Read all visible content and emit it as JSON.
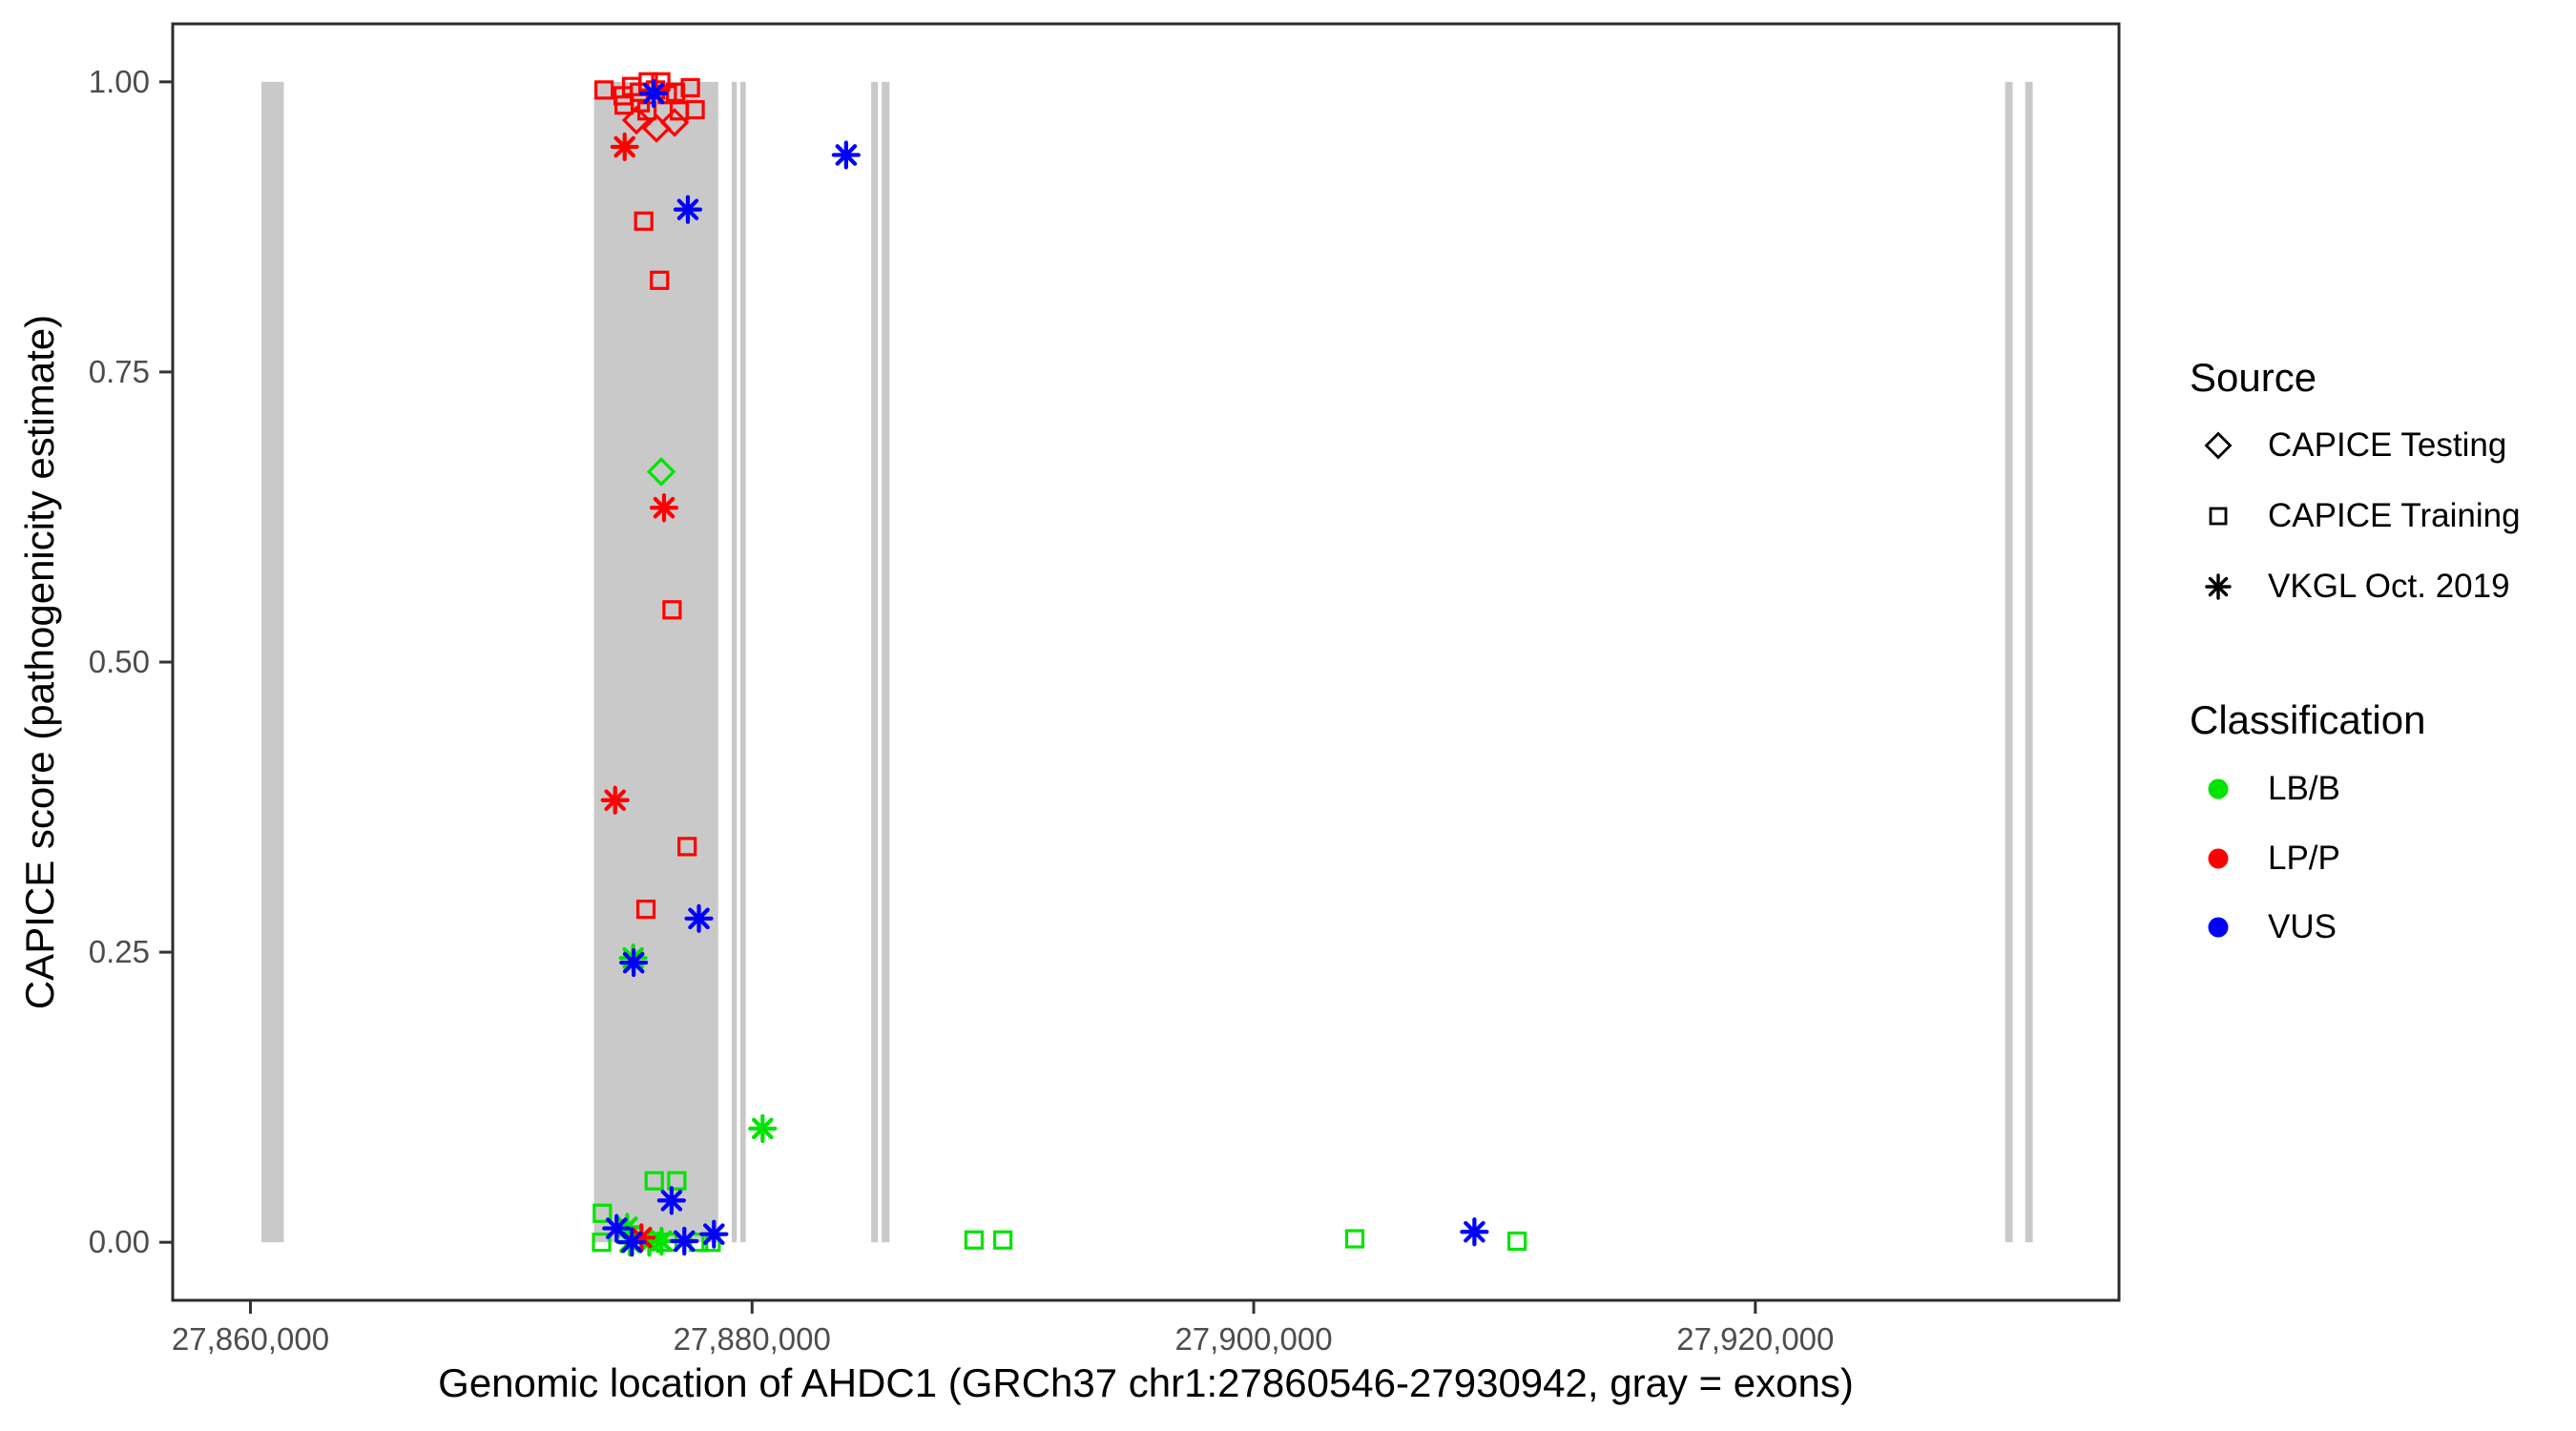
{
  "figure": {
    "background": "#FFFFFF"
  },
  "colors": {
    "exon_gray": "#C9C9C9",
    "axis_text": "#4D4D4D",
    "panel_border": "#2B2B2B",
    "tick_mark": "#333333",
    "LB/B": "#00E400",
    "LP/P": "#FF0000",
    "VUS": "#0000FF"
  },
  "chart_data": {
    "type": "scatter",
    "title": "",
    "xlabel": "Genomic location of AHDC1 (GRCh37 chr1:27860546-27930942, gray = exons)",
    "ylabel": "CAPICE score (pathogenicity estimate)",
    "x_domain": [
      27856900,
      27934500
    ],
    "y_domain": [
      -0.05,
      1.05
    ],
    "grid": "off",
    "legend_position": "right",
    "x_ticks": [
      {
        "value": 27860000,
        "label": "27,860,000"
      },
      {
        "value": 27880000,
        "label": "27,880,000"
      },
      {
        "value": 27900000,
        "label": "27,900,000"
      },
      {
        "value": 27920000,
        "label": "27,920,000"
      }
    ],
    "y_ticks": [
      {
        "value": 0.0,
        "label": "0.00"
      },
      {
        "value": 0.25,
        "label": "0.25"
      },
      {
        "value": 0.5,
        "label": "0.50"
      },
      {
        "value": 0.75,
        "label": "0.75"
      },
      {
        "value": 1.0,
        "label": "1.00"
      }
    ],
    "exons_bp": [
      [
        27860440,
        27861330
      ],
      [
        27873700,
        27878650
      ],
      [
        27879190,
        27879390
      ],
      [
        27879530,
        27879750
      ],
      [
        27884750,
        27885020
      ],
      [
        27885170,
        27885480
      ],
      [
        27929960,
        27930260
      ],
      [
        27930760,
        27931060
      ]
    ],
    "points": [
      {
        "bp": 27876100,
        "score": 0.053,
        "classification": "LB/B",
        "source": "CAPICE Training"
      },
      {
        "bp": 27877000,
        "score": 0.053,
        "classification": "LB/B",
        "source": "CAPICE Training"
      },
      {
        "bp": 27874030,
        "score": 0.025,
        "classification": "LB/B",
        "source": "CAPICE Training"
      },
      {
        "bp": 27874000,
        "score": 0.0,
        "classification": "LB/B",
        "source": "CAPICE Training"
      },
      {
        "bp": 27876650,
        "score": 0.0,
        "classification": "LB/B",
        "source": "CAPICE Training"
      },
      {
        "bp": 27877870,
        "score": 0.0,
        "classification": "LB/B",
        "source": "CAPICE Training"
      },
      {
        "bp": 27878370,
        "score": 0.0,
        "classification": "LB/B",
        "source": "CAPICE Training"
      },
      {
        "bp": 27888850,
        "score": 0.002,
        "classification": "LB/B",
        "source": "CAPICE Training"
      },
      {
        "bp": 27890000,
        "score": 0.002,
        "classification": "LB/B",
        "source": "CAPICE Training"
      },
      {
        "bp": 27904030,
        "score": 0.003,
        "classification": "LB/B",
        "source": "CAPICE Training"
      },
      {
        "bp": 27910500,
        "score": 0.001,
        "classification": "LB/B",
        "source": "CAPICE Training"
      },
      {
        "bp": 27874100,
        "score": 0.993,
        "classification": "LP/P",
        "source": "CAPICE Training"
      },
      {
        "bp": 27874860,
        "score": 0.988,
        "classification": "LP/P",
        "source": "CAPICE Training"
      },
      {
        "bp": 27875200,
        "score": 0.996,
        "classification": "LP/P",
        "source": "CAPICE Training"
      },
      {
        "bp": 27875510,
        "score": 0.991,
        "classification": "LP/P",
        "source": "CAPICE Training"
      },
      {
        "bp": 27875860,
        "score": 1.0,
        "classification": "LP/P",
        "source": "CAPICE Training"
      },
      {
        "bp": 27876150,
        "score": 0.993,
        "classification": "LP/P",
        "source": "CAPICE Training"
      },
      {
        "bp": 27876360,
        "score": 1.0,
        "classification": "LP/P",
        "source": "CAPICE Training"
      },
      {
        "bp": 27876620,
        "score": 0.989,
        "classification": "LP/P",
        "source": "CAPICE Training"
      },
      {
        "bp": 27876950,
        "score": 0.991,
        "classification": "LP/P",
        "source": "CAPICE Training"
      },
      {
        "bp": 27877540,
        "score": 0.995,
        "classification": "LP/P",
        "source": "CAPICE Training"
      },
      {
        "bp": 27877730,
        "score": 0.976,
        "classification": "LP/P",
        "source": "CAPICE Training"
      },
      {
        "bp": 27877100,
        "score": 0.975,
        "classification": "LP/P",
        "source": "CAPICE Training"
      },
      {
        "bp": 27875810,
        "score": 0.975,
        "classification": "LP/P",
        "source": "CAPICE Training"
      },
      {
        "bp": 27875540,
        "score": 0.982,
        "classification": "LP/P",
        "source": "CAPICE Training"
      },
      {
        "bp": 27874900,
        "score": 0.98,
        "classification": "LP/P",
        "source": "CAPICE Training"
      },
      {
        "bp": 27875680,
        "score": 0.88,
        "classification": "LP/P",
        "source": "CAPICE Training"
      },
      {
        "bp": 27876310,
        "score": 0.829,
        "classification": "LP/P",
        "source": "CAPICE Training"
      },
      {
        "bp": 27876810,
        "score": 0.545,
        "classification": "LP/P",
        "source": "CAPICE Training"
      },
      {
        "bp": 27877410,
        "score": 0.341,
        "classification": "LP/P",
        "source": "CAPICE Training"
      },
      {
        "bp": 27875770,
        "score": 0.287,
        "classification": "LP/P",
        "source": "CAPICE Training"
      },
      {
        "bp": 27875390,
        "score": 0.967,
        "classification": "LP/P",
        "source": "CAPICE Testing"
      },
      {
        "bp": 27876190,
        "score": 0.96,
        "classification": "LP/P",
        "source": "CAPICE Testing"
      },
      {
        "bp": 27876910,
        "score": 0.965,
        "classification": "LP/P",
        "source": "CAPICE Testing"
      },
      {
        "bp": 27876380,
        "score": 0.664,
        "classification": "LB/B",
        "source": "CAPICE Testing"
      },
      {
        "bp": 27880420,
        "score": 0.098,
        "classification": "LB/B",
        "source": "VKGL Oct. 2019"
      },
      {
        "bp": 27875260,
        "score": 0.245,
        "classification": "LB/B",
        "source": "VKGL Oct. 2019"
      },
      {
        "bp": 27875020,
        "score": 0.013,
        "classification": "LB/B",
        "source": "VKGL Oct. 2019"
      },
      {
        "bp": 27875130,
        "score": 0.0,
        "classification": "LB/B",
        "source": "VKGL Oct. 2019"
      },
      {
        "bp": 27875900,
        "score": 0.0,
        "classification": "LB/B",
        "source": "VKGL Oct. 2019"
      },
      {
        "bp": 27876390,
        "score": 0.001,
        "classification": "LB/B",
        "source": "VKGL Oct. 2019"
      },
      {
        "bp": 27874920,
        "score": 0.944,
        "classification": "LP/P",
        "source": "VKGL Oct. 2019"
      },
      {
        "bp": 27876490,
        "score": 0.633,
        "classification": "LP/P",
        "source": "VKGL Oct. 2019"
      },
      {
        "bp": 27874540,
        "score": 0.381,
        "classification": "LP/P",
        "source": "VKGL Oct. 2019"
      },
      {
        "bp": 27875590,
        "score": 0.004,
        "classification": "LP/P",
        "source": "VKGL Oct. 2019"
      },
      {
        "bp": 27876080,
        "score": 0.99,
        "classification": "VUS",
        "source": "VKGL Oct. 2019"
      },
      {
        "bp": 27883750,
        "score": 0.937,
        "classification": "VUS",
        "source": "VKGL Oct. 2019"
      },
      {
        "bp": 27877440,
        "score": 0.89,
        "classification": "VUS",
        "source": "VKGL Oct. 2019"
      },
      {
        "bp": 27877880,
        "score": 0.279,
        "classification": "VUS",
        "source": "VKGL Oct. 2019"
      },
      {
        "bp": 27875280,
        "score": 0.241,
        "classification": "VUS",
        "source": "VKGL Oct. 2019"
      },
      {
        "bp": 27876790,
        "score": 0.036,
        "classification": "VUS",
        "source": "VKGL Oct. 2019"
      },
      {
        "bp": 27874600,
        "score": 0.012,
        "classification": "VUS",
        "source": "VKGL Oct. 2019"
      },
      {
        "bp": 27875210,
        "score": 0.0,
        "classification": "VUS",
        "source": "VKGL Oct. 2019"
      },
      {
        "bp": 27877300,
        "score": 0.001,
        "classification": "VUS",
        "source": "VKGL Oct. 2019"
      },
      {
        "bp": 27878480,
        "score": 0.007,
        "classification": "VUS",
        "source": "VKGL Oct. 2019"
      },
      {
        "bp": 27908800,
        "score": 0.009,
        "classification": "VUS",
        "source": "VKGL Oct. 2019"
      }
    ]
  },
  "legend": {
    "source": {
      "title": "Source",
      "items": [
        {
          "label": "CAPICE Testing",
          "shape": "diamond"
        },
        {
          "label": "CAPICE Training",
          "shape": "square"
        },
        {
          "label": "VKGL Oct. 2019",
          "shape": "asterisk"
        }
      ]
    },
    "classification": {
      "title": "Classification",
      "items": [
        {
          "label": "LB/B",
          "color": "#00E400"
        },
        {
          "label": "LP/P",
          "color": "#FF0000"
        },
        {
          "label": "VUS",
          "color": "#0000FF"
        }
      ]
    }
  }
}
